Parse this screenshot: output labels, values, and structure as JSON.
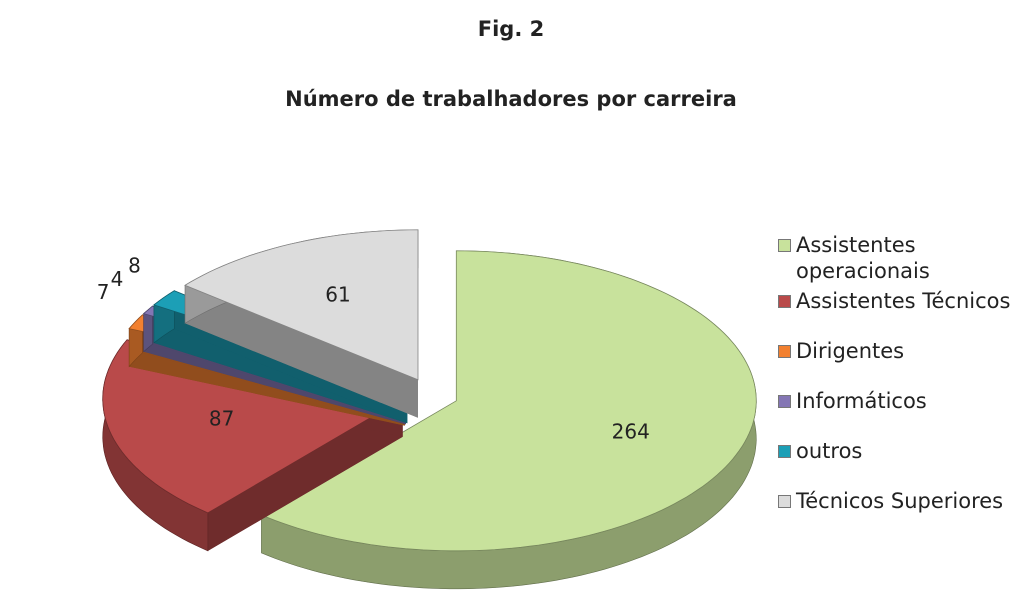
{
  "chart_data": {
    "type": "pie3d",
    "caption": "Fig. 2",
    "title": "Número de trabalhadores por carreira",
    "categories": [
      "Assistentes operacionais",
      "Assistentes Técnicos",
      "Dirigentes",
      "Informáticos",
      "outros",
      "Técnicos Superiores"
    ],
    "values": [
      264,
      87,
      7,
      4,
      8,
      61
    ],
    "colors": [
      "#c8e29c",
      "#b94a4a",
      "#f28030",
      "#8476b4",
      "#1c9fb6",
      "#dcdcdc"
    ],
    "legend": "right"
  }
}
